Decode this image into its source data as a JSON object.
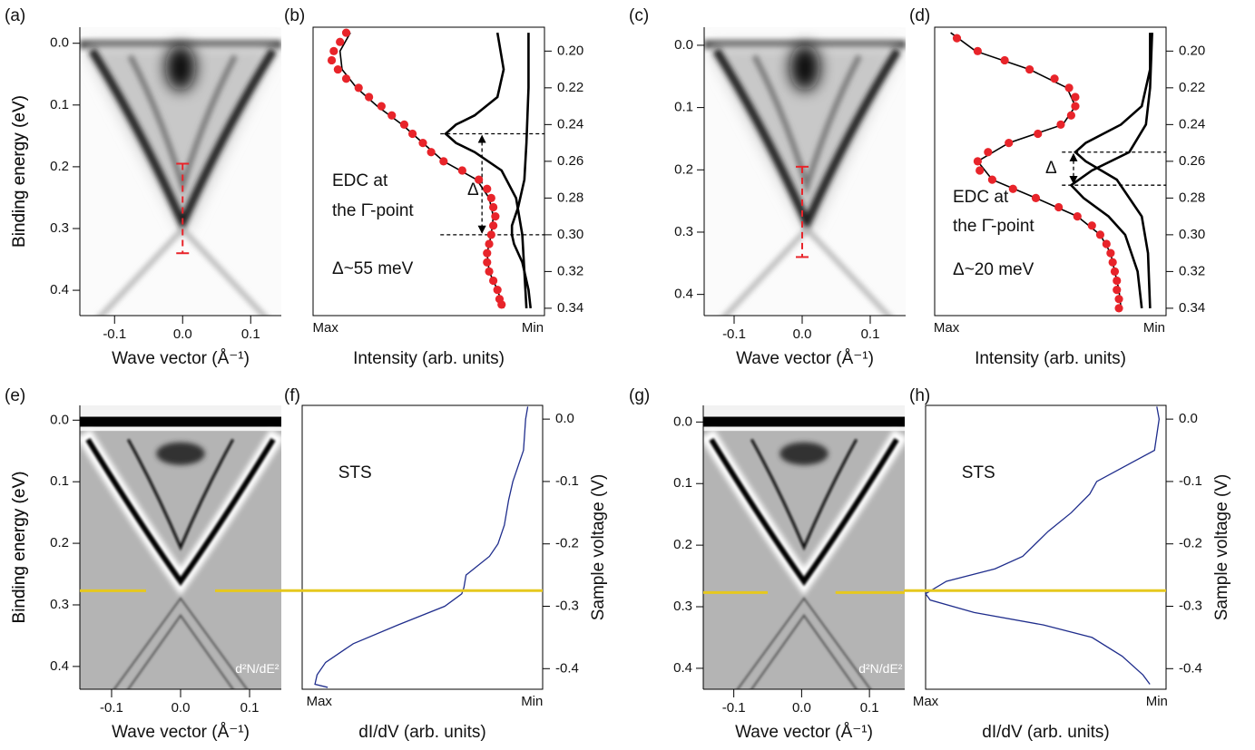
{
  "chart_data": [
    {
      "type": "image",
      "style": "arpes",
      "panel_label": "(a)",
      "x_label": "Wave vector (Å⁻¹)",
      "y_label": "Binding energy (eV)",
      "xlim": [
        -0.151,
        0.145
      ],
      "ylim": [
        -0.026,
        0.441
      ],
      "xticks": [
        -0.1,
        {
          "value": 0,
          "label": "0.0"
        },
        0.1
      ],
      "yticks": [
        {
          "value": 0,
          "label": "0.0"
        },
        0.1,
        0.2,
        0.3,
        0.4
      ],
      "error_bar": {
        "x": 0,
        "y": [
          0.195,
          0.34
        ],
        "color": "#e8242a"
      }
    },
    {
      "type": "edc",
      "panel_label": "(b)",
      "x_label": "Intensity (arb. units)",
      "xlim": [
        1.06,
        -0.057
      ],
      "ylim": [
        0.187,
        0.344
      ],
      "xticks": [
        {
          "value": 1,
          "label": "Max"
        },
        {
          "value": 0,
          "label": "Min"
        }
      ],
      "yticks": [
        {
          "value": 0.2,
          "label": "0.20"
        },
        0.22,
        0.24,
        0.26,
        0.28,
        {
          "value": 0.3,
          "label": "0.30"
        },
        0.32,
        0.34
      ],
      "series": [
        {
          "color": "#e8242a",
          "style": "dots",
          "y": [
            0.19,
            0.195,
            0.2,
            0.205,
            0.21,
            0.215,
            0.22,
            0.225,
            0.23,
            0.235,
            0.24,
            0.245,
            0.25,
            0.255,
            0.26,
            0.265,
            0.27,
            0.275,
            0.28,
            0.285,
            0.29,
            0.295,
            0.3,
            0.305,
            0.31,
            0.315,
            0.32,
            0.325,
            0.33,
            0.335,
            0.338
          ],
          "x": [
            0.9,
            0.93,
            0.96,
            0.97,
            0.94,
            0.9,
            0.84,
            0.79,
            0.73,
            0.68,
            0.62,
            0.58,
            0.53,
            0.49,
            0.43,
            0.34,
            0.26,
            0.22,
            0.2,
            0.19,
            0.18,
            0.19,
            0.2,
            0.21,
            0.22,
            0.22,
            0.21,
            0.19,
            0.17,
            0.16,
            0.15
          ]
        },
        {
          "color": "#000000",
          "style": "thin",
          "y": [
            0.19,
            0.2,
            0.21,
            0.22,
            0.23,
            0.24,
            0.25,
            0.26,
            0.265,
            0.27,
            0.28,
            0.29,
            0.3,
            0.31,
            0.32,
            0.33,
            0.34
          ],
          "x": [
            0.88,
            0.93,
            0.92,
            0.85,
            0.75,
            0.63,
            0.53,
            0.43,
            0.35,
            0.27,
            0.21,
            0.19,
            0.2,
            0.22,
            0.21,
            0.17,
            0.14
          ]
        },
        {
          "color": "#000000",
          "style": "thick",
          "y": [
            0.19,
            0.21,
            0.225,
            0.235,
            0.24,
            0.245,
            0.25,
            0.255,
            0.265,
            0.28,
            0.3,
            0.32,
            0.34
          ],
          "x": [
            0.17,
            0.14,
            0.17,
            0.28,
            0.37,
            0.42,
            0.37,
            0.28,
            0.15,
            0.08,
            0.05,
            0.04,
            0.03
          ]
        },
        {
          "color": "#000000",
          "style": "thick",
          "y": [
            0.19,
            0.22,
            0.25,
            0.27,
            0.285,
            0.295,
            0.3,
            0.305,
            0.315,
            0.33,
            0.34
          ],
          "x": [
            0.02,
            0.02,
            0.03,
            0.04,
            0.07,
            0.1,
            0.1,
            0.09,
            0.05,
            0.02,
            0.01
          ]
        }
      ],
      "gap_lines": [
        0.245,
        0.3
      ],
      "annotations": [
        "EDC at",
        "the Γ̄-point",
        "Δ~55 meV",
        "Δ"
      ]
    },
    {
      "type": "image",
      "style": "arpes",
      "panel_label": "(c)",
      "x_label": "Wave vector (Å⁻¹)",
      "y_label": "Binding energy (eV)",
      "xlim": [
        -0.144,
        0.152
      ],
      "ylim": [
        -0.029,
        0.434
      ],
      "xticks": [
        -0.1,
        {
          "value": 0,
          "label": "0.0"
        },
        0.1
      ],
      "yticks": [
        {
          "value": 0,
          "label": "0.0"
        },
        0.1,
        0.2,
        0.3,
        0.4
      ],
      "error_bar": {
        "x": 0,
        "y": [
          0.195,
          0.34
        ],
        "color": "#e8242a"
      }
    },
    {
      "type": "edc",
      "panel_label": "(d)",
      "x_label": "Intensity (arb. units)",
      "xlim": [
        1.057,
        -0.057
      ],
      "ylim": [
        0.187,
        0.344
      ],
      "xticks": [
        {
          "value": 1,
          "label": "Max"
        },
        {
          "value": 0,
          "label": "Min"
        }
      ],
      "yticks": [
        {
          "value": 0.2,
          "label": "0.20"
        },
        0.22,
        0.24,
        0.26,
        0.28,
        {
          "value": 0.3,
          "label": "0.30"
        },
        0.32,
        0.34
      ],
      "series": [
        {
          "color": "#e8242a",
          "style": "dots",
          "y": [
            0.193,
            0.2,
            0.205,
            0.21,
            0.215,
            0.22,
            0.225,
            0.23,
            0.235,
            0.24,
            0.245,
            0.25,
            0.255,
            0.26,
            0.265,
            0.27,
            0.275,
            0.28,
            0.285,
            0.29,
            0.295,
            0.3,
            0.305,
            0.31,
            0.315,
            0.32,
            0.325,
            0.33,
            0.335,
            0.34
          ],
          "x": [
            0.95,
            0.85,
            0.72,
            0.6,
            0.48,
            0.41,
            0.38,
            0.38,
            0.4,
            0.45,
            0.56,
            0.7,
            0.8,
            0.85,
            0.84,
            0.78,
            0.68,
            0.57,
            0.46,
            0.37,
            0.3,
            0.26,
            0.23,
            0.21,
            0.2,
            0.19,
            0.18,
            0.18,
            0.17,
            0.17
          ]
        },
        {
          "color": "#000000",
          "style": "thin",
          "y": [
            0.19,
            0.2,
            0.21,
            0.22,
            0.23,
            0.24,
            0.25,
            0.26,
            0.27,
            0.28,
            0.29,
            0.3,
            0.31,
            0.32,
            0.33,
            0.34
          ],
          "x": [
            0.98,
            0.86,
            0.6,
            0.42,
            0.38,
            0.44,
            0.7,
            0.85,
            0.78,
            0.57,
            0.37,
            0.26,
            0.21,
            0.19,
            0.17,
            0.16
          ]
        },
        {
          "color": "#000000",
          "style": "thick",
          "y": [
            0.19,
            0.21,
            0.23,
            0.24,
            0.25,
            0.255,
            0.26,
            0.27,
            0.29,
            0.31,
            0.34
          ],
          "x": [
            0.02,
            0.02,
            0.06,
            0.16,
            0.33,
            0.38,
            0.33,
            0.18,
            0.06,
            0.03,
            0.02
          ]
        },
        {
          "color": "#000000",
          "style": "thick",
          "y": [
            0.19,
            0.22,
            0.24,
            0.255,
            0.265,
            0.273,
            0.28,
            0.29,
            0.3,
            0.32,
            0.34
          ],
          "x": [
            0.01,
            0.02,
            0.04,
            0.12,
            0.3,
            0.4,
            0.34,
            0.22,
            0.14,
            0.08,
            0.06
          ]
        }
      ],
      "gap_lines": [
        0.255,
        0.273
      ],
      "annotations": [
        "EDC at",
        "the Γ̄-point",
        "Δ~20 meV",
        "Δ"
      ]
    },
    {
      "type": "image",
      "style": "derivative",
      "panel_label": "(e)",
      "x_label": "Wave vector (Å⁻¹)",
      "y_label": "Binding energy (eV)",
      "xlim": [
        -0.146,
        0.146
      ],
      "ylim": [
        -0.024,
        0.437
      ],
      "xticks": [
        -0.1,
        {
          "value": 0,
          "label": "0.0"
        },
        0.1
      ],
      "yticks": [
        {
          "value": 0,
          "label": "0.0"
        },
        0.1,
        0.2,
        0.3,
        0.4
      ],
      "image_label": "d²N/dE²",
      "highlight": 0.277,
      "highlight_color": "#e6c81e"
    },
    {
      "type": "sts",
      "panel_label": "(f)",
      "x_label": "dI/dV (arb. units)",
      "y_label": "Sample voltage (V)",
      "xlim": [
        1.08,
        -0.05
      ],
      "ylim": [
        0.022,
        -0.433
      ],
      "xticks": [
        {
          "value": 1,
          "label": "Max"
        },
        {
          "value": 0,
          "label": "Min"
        }
      ],
      "yticks": [
        {
          "value": 0,
          "label": "0.0"
        },
        -0.1,
        -0.2,
        -0.3,
        -0.4
      ],
      "series": [
        {
          "color": "#1f2d8c",
          "y": [
            0.02,
            0,
            -0.05,
            -0.08,
            -0.1,
            -0.13,
            -0.17,
            -0.2,
            -0.22,
            -0.25,
            -0.27,
            -0.28,
            -0.3,
            -0.33,
            -0.36,
            -0.39,
            -0.41,
            -0.425,
            -0.43
          ],
          "x": [
            0.02,
            0.03,
            0.04,
            0.07,
            0.09,
            0.11,
            0.13,
            0.16,
            0.2,
            0.31,
            0.32,
            0.33,
            0.41,
            0.63,
            0.84,
            0.97,
            1.01,
            1.02,
            0.96
          ]
        }
      ],
      "annotation": "STS",
      "highlight": -0.275,
      "highlight_color": "#e6c81e"
    },
    {
      "type": "image",
      "style": "derivative",
      "panel_label": "(g)",
      "x_label": "Wave vector (Å⁻¹)",
      "y_label": "Binding energy (eV)",
      "xlim": [
        -0.145,
        0.152
      ],
      "ylim": [
        -0.027,
        0.434
      ],
      "xticks": [
        -0.1,
        {
          "value": 0,
          "label": "0.0"
        },
        0.1
      ],
      "yticks": [
        {
          "value": 0,
          "label": "0.0"
        },
        0.1,
        0.2,
        0.3,
        0.4
      ],
      "image_label": "d²N/dE²",
      "highlight": 0.277,
      "highlight_color": "#e6c81e"
    },
    {
      "type": "sts",
      "panel_label": "(h)",
      "x_label": "dI/dV (arb. units)",
      "y_label": "Sample voltage (V)",
      "xlim": [
        1.0,
        -0.04
      ],
      "ylim": [
        0.022,
        -0.433
      ],
      "xticks": [
        {
          "value": 1,
          "label": "Max"
        },
        {
          "value": 0,
          "label": "Min"
        }
      ],
      "yticks": [
        {
          "value": 0,
          "label": "0.0"
        },
        -0.1,
        -0.2,
        -0.3,
        -0.4
      ],
      "series": [
        {
          "color": "#1f2d8c",
          "y": [
            0.02,
            0,
            -0.05,
            -0.1,
            -0.12,
            -0.15,
            -0.18,
            -0.22,
            -0.24,
            -0.26,
            -0.28,
            -0.29,
            -0.31,
            -0.33,
            -0.35,
            -0.38,
            -0.41,
            -0.425
          ],
          "x": [
            0.0,
            -0.01,
            0.01,
            0.26,
            0.29,
            0.37,
            0.47,
            0.58,
            0.7,
            0.91,
            1.0,
            0.98,
            0.79,
            0.49,
            0.28,
            0.15,
            0.06,
            0.03
          ]
        }
      ],
      "annotation": "STS",
      "highlight": -0.275,
      "highlight_color": "#e6c81e"
    }
  ]
}
